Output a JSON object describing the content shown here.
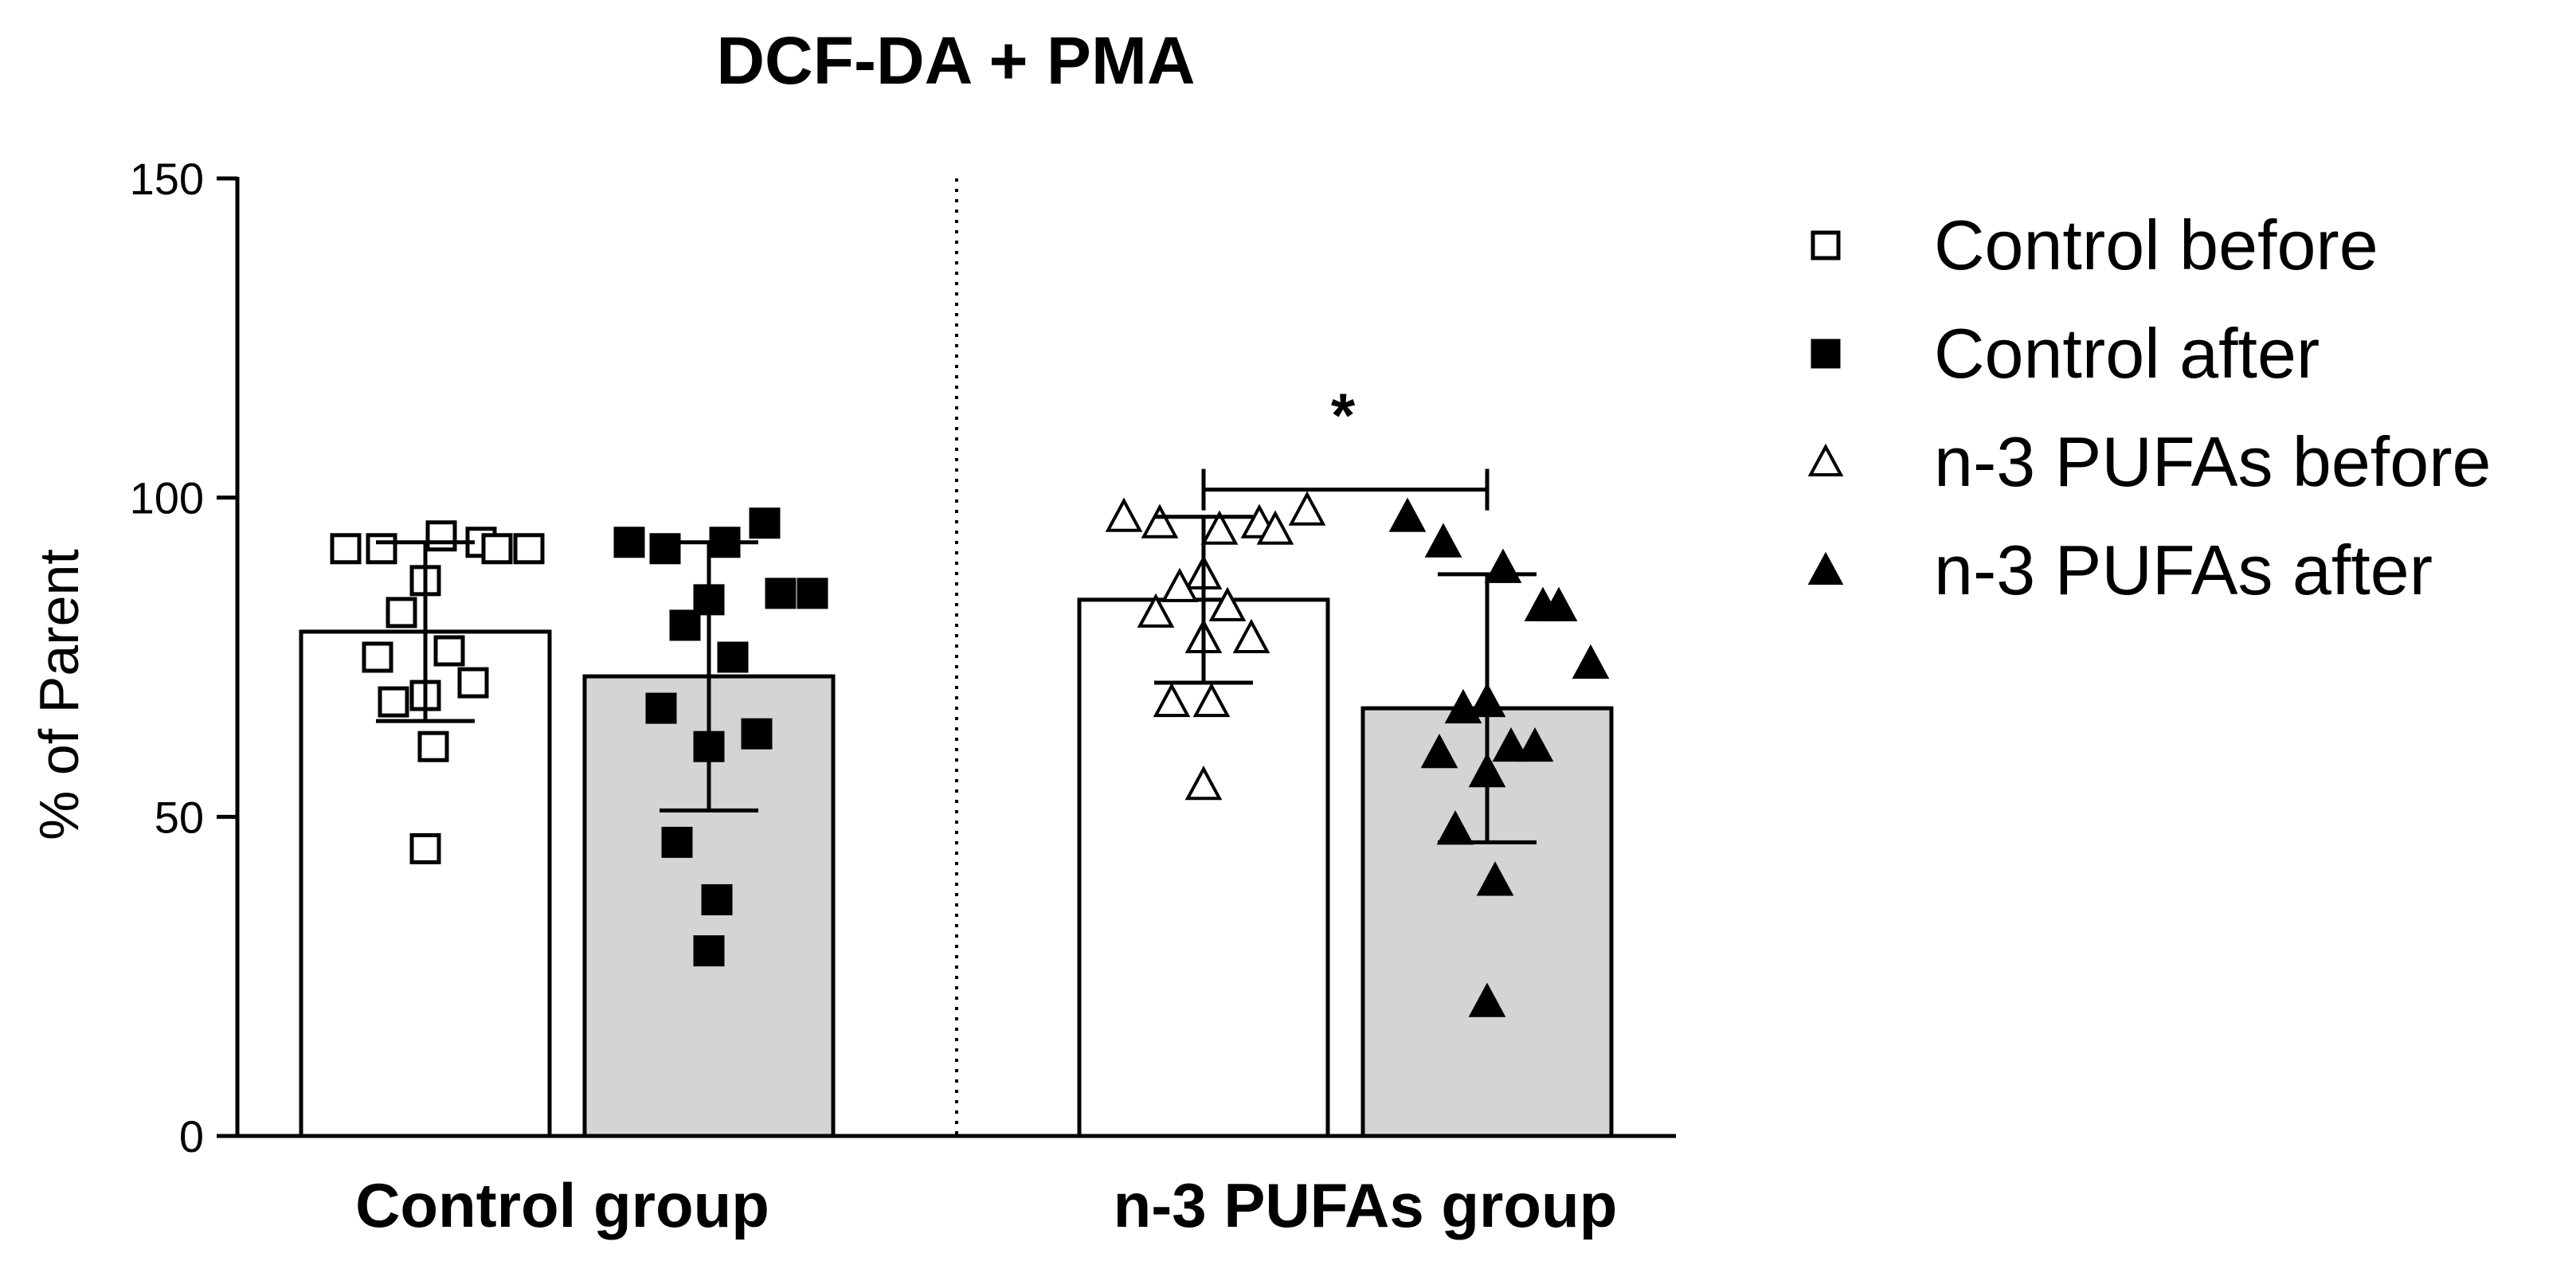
{
  "chart_data": {
    "type": "bar",
    "title": "DCF-DA + PMA",
    "ylabel": "% of Parent",
    "xlabel": "",
    "ylim": [
      0,
      150
    ],
    "yticks": [
      0,
      50,
      100,
      150
    ],
    "groups": [
      "Control group",
      "n-3 PUFAs group"
    ],
    "bars": [
      {
        "name": "Control before",
        "group": "Control group",
        "fill": "#ffffff",
        "marker": "square-open",
        "mean": 79,
        "sd_low": 65,
        "sd_high": 93,
        "points": [
          92,
          92,
          94,
          93,
          92,
          92,
          87,
          82,
          76,
          75,
          71,
          69,
          68,
          61,
          45
        ]
      },
      {
        "name": "Control after",
        "group": "Control group",
        "fill": "#d4d4d4",
        "marker": "square-filled",
        "mean": 72,
        "sd_low": 51,
        "sd_high": 93,
        "points": [
          93,
          92,
          93,
          96,
          85,
          85,
          84,
          80,
          75,
          67,
          63,
          61,
          46,
          37,
          29
        ]
      },
      {
        "name": "n-3 PUFAs before",
        "group": "n-3 PUFAs group",
        "fill": "#ffffff",
        "marker": "triangle-open",
        "mean": 84,
        "sd_low": 71,
        "sd_high": 97,
        "points": [
          97,
          96,
          95,
          96,
          95,
          98,
          88,
          86,
          83,
          82,
          78,
          78,
          68,
          68,
          55
        ]
      },
      {
        "name": "n-3 PUFAs after",
        "group": "n-3 PUFAs group",
        "fill": "#d4d4d4",
        "marker": "triangle-filled",
        "mean": 67,
        "sd_low": 46,
        "sd_high": 88,
        "points": [
          97,
          93,
          89,
          83,
          83,
          74,
          68,
          67,
          61,
          60,
          61,
          57,
          48,
          40,
          21
        ]
      }
    ],
    "significance": {
      "from": "n-3 PUFAs before",
      "to": "n-3 PUFAs after",
      "label": "*",
      "y": 106
    },
    "legend": {
      "position": "right",
      "entries": [
        {
          "label": "Control before",
          "marker": "square-open"
        },
        {
          "label": "Control after",
          "marker": "square-filled"
        },
        {
          "label": "n-3 PUFAs before",
          "marker": "triangle-open"
        },
        {
          "label": "n-3 PUFAs after",
          "marker": "triangle-filled"
        }
      ]
    }
  }
}
